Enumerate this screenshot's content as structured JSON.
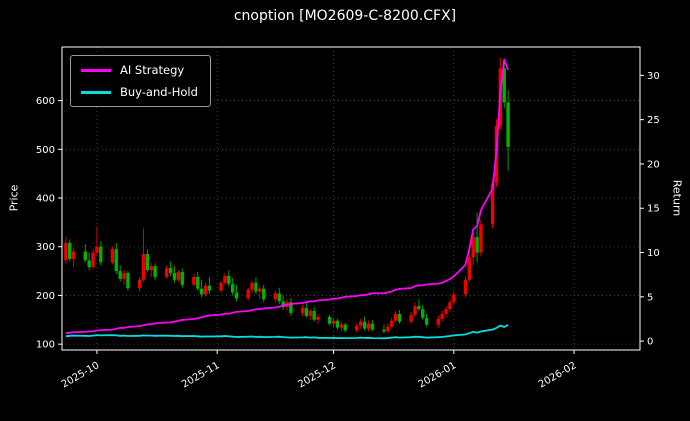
{
  "chart_data": {
    "type": "candlestick+line",
    "title": "cnoption [MO2609-C-8200.CFX]",
    "ylabel_left": "Price",
    "ylabel_right": "Return",
    "grid": true,
    "legend_position": "upper-left",
    "xlim": [
      0,
      149
    ],
    "price_ylim": [
      88,
      710
    ],
    "return_ylim": [
      -1.0,
      33.2
    ],
    "x_unit_note": "day index, 0 = 2025-09-22",
    "price_ticks": [
      100,
      200,
      300,
      400,
      500,
      600
    ],
    "return_ticks": [
      0,
      5,
      10,
      15,
      20,
      25,
      30
    ],
    "x_ticks": [
      {
        "pos": 9,
        "label": "2025-10"
      },
      {
        "pos": 40,
        "label": "2025-11"
      },
      {
        "pos": 70,
        "label": "2025-12"
      },
      {
        "pos": 101,
        "label": "2026-01"
      },
      {
        "pos": 132,
        "label": "2026-02"
      }
    ],
    "colors": {
      "up": "#f20000",
      "down": "#00b300",
      "ai": "#ff00ff",
      "bh": "#00e0e0",
      "grid": "#4d4d4d",
      "text": "#ffffff",
      "spine": "#ffffff",
      "bg": "#000000"
    },
    "candles": {
      "days": [
        1,
        2,
        3,
        6,
        7,
        8,
        9,
        10,
        13,
        14,
        15,
        16,
        17,
        20,
        21,
        22,
        23,
        24,
        27,
        28,
        29,
        30,
        31,
        34,
        35,
        36,
        37,
        38,
        41,
        42,
        43,
        44,
        45,
        48,
        49,
        50,
        51,
        52,
        55,
        56,
        57,
        58,
        59,
        62,
        63,
        64,
        65,
        66,
        69,
        70,
        71,
        72,
        73,
        76,
        77,
        78,
        79,
        80,
        83,
        84,
        85,
        86,
        87,
        90,
        91,
        92,
        93,
        94,
        97,
        98,
        99,
        100,
        101,
        104,
        105,
        106,
        107,
        108,
        111,
        112,
        113,
        114,
        115
      ],
      "open": [
        272,
        308,
        275,
        290,
        272,
        258,
        288,
        300,
        268,
        295,
        250,
        234,
        246,
        215,
        232,
        285,
        252,
        260,
        238,
        256,
        246,
        232,
        248,
        222,
        238,
        214,
        202,
        220,
        210,
        226,
        240,
        224,
        206,
        194,
        212,
        226,
        208,
        214,
        192,
        204,
        188,
        176,
        186,
        164,
        174,
        158,
        168,
        150,
        156,
        142,
        148,
        134,
        140,
        128,
        138,
        146,
        132,
        142,
        130,
        126,
        136,
        148,
        162,
        146,
        160,
        178,
        172,
        154,
        140,
        152,
        162,
        172,
        186,
        202,
        232,
        278,
        320,
        288,
        346,
        430,
        548,
        666,
        596
      ],
      "high": [
        320,
        315,
        298,
        305,
        288,
        295,
        342,
        312,
        300,
        308,
        262,
        252,
        250,
        238,
        338,
        295,
        268,
        266,
        262,
        270,
        260,
        252,
        256,
        244,
        248,
        232,
        226,
        238,
        230,
        246,
        252,
        236,
        222,
        216,
        230,
        238,
        220,
        222,
        210,
        216,
        200,
        192,
        194,
        180,
        184,
        172,
        176,
        162,
        160,
        154,
        152,
        146,
        144,
        142,
        152,
        156,
        148,
        150,
        140,
        142,
        154,
        168,
        170,
        166,
        186,
        192,
        180,
        162,
        158,
        168,
        178,
        192,
        208,
        240,
        288,
        332,
        370,
        354,
        440,
        562,
        688,
        678,
        622
      ],
      "low": [
        265,
        270,
        258,
        268,
        252,
        255,
        280,
        262,
        264,
        244,
        228,
        222,
        210,
        208,
        228,
        248,
        238,
        232,
        234,
        240,
        226,
        228,
        216,
        218,
        210,
        196,
        198,
        204,
        206,
        222,
        218,
        200,
        188,
        190,
        204,
        202,
        192,
        186,
        186,
        182,
        170,
        168,
        158,
        158,
        154,
        150,
        146,
        142,
        138,
        134,
        130,
        126,
        124,
        124,
        132,
        128,
        126,
        126,
        122,
        124,
        132,
        144,
        142,
        142,
        156,
        168,
        150,
        136,
        134,
        146,
        154,
        166,
        180,
        196,
        226,
        262,
        268,
        280,
        338,
        422,
        540,
        584,
        456
      ],
      "close": [
        308,
        275,
        290,
        272,
        258,
        288,
        300,
        268,
        295,
        250,
        234,
        246,
        215,
        232,
        285,
        252,
        260,
        238,
        256,
        246,
        232,
        248,
        222,
        238,
        214,
        202,
        220,
        210,
        226,
        240,
        224,
        206,
        194,
        212,
        226,
        208,
        214,
        192,
        204,
        188,
        176,
        186,
        164,
        174,
        158,
        168,
        150,
        156,
        142,
        148,
        134,
        140,
        128,
        138,
        146,
        132,
        142,
        130,
        126,
        136,
        148,
        162,
        146,
        160,
        178,
        172,
        154,
        140,
        152,
        162,
        172,
        186,
        202,
        232,
        278,
        320,
        288,
        346,
        430,
        548,
        666,
        596,
        505
      ]
    },
    "series": [
      {
        "name": "AI Strategy",
        "axis": "return",
        "color_key": "ai",
        "x_shared_with_candles": true,
        "values": [
          0.9,
          0.95,
          1.0,
          1.05,
          1.1,
          1.1,
          1.2,
          1.25,
          1.3,
          1.4,
          1.5,
          1.5,
          1.6,
          1.7,
          1.8,
          1.9,
          1.9,
          2.0,
          2.1,
          2.1,
          2.2,
          2.3,
          2.4,
          2.5,
          2.6,
          2.7,
          2.8,
          2.9,
          3.0,
          3.1,
          3.1,
          3.2,
          3.3,
          3.4,
          3.5,
          3.6,
          3.6,
          3.7,
          3.8,
          3.9,
          4.0,
          4.1,
          4.2,
          4.3,
          4.4,
          4.5,
          4.5,
          4.6,
          4.7,
          4.8,
          4.8,
          4.9,
          5.0,
          5.1,
          5.2,
          5.2,
          5.3,
          5.4,
          5.4,
          5.5,
          5.6,
          5.8,
          5.9,
          6.0,
          6.2,
          6.3,
          6.3,
          6.4,
          6.5,
          6.6,
          6.8,
          7.0,
          7.3,
          8.6,
          10.4,
          12.6,
          13.0,
          14.8,
          17.2,
          21.5,
          28.0,
          31.8,
          30.6
        ]
      },
      {
        "name": "Buy-and-Hold",
        "axis": "return",
        "color_key": "bh",
        "x_shared_with_candles": true,
        "values": [
          0.55,
          0.6,
          0.62,
          0.6,
          0.58,
          0.62,
          0.68,
          0.65,
          0.68,
          0.65,
          0.6,
          0.62,
          0.58,
          0.6,
          0.65,
          0.62,
          0.63,
          0.6,
          0.62,
          0.6,
          0.58,
          0.6,
          0.56,
          0.58,
          0.55,
          0.5,
          0.54,
          0.52,
          0.55,
          0.58,
          0.55,
          0.5,
          0.47,
          0.5,
          0.52,
          0.47,
          0.5,
          0.46,
          0.48,
          0.5,
          0.46,
          0.42,
          0.4,
          0.42,
          0.44,
          0.4,
          0.42,
          0.38,
          0.36,
          0.38,
          0.34,
          0.36,
          0.34,
          0.36,
          0.4,
          0.36,
          0.38,
          0.34,
          0.32,
          0.35,
          0.4,
          0.44,
          0.4,
          0.44,
          0.5,
          0.48,
          0.44,
          0.4,
          0.44,
          0.48,
          0.52,
          0.58,
          0.65,
          0.75,
          0.9,
          1.05,
          0.95,
          1.1,
          1.3,
          1.5,
          1.75,
          1.6,
          1.85
        ]
      }
    ]
  }
}
